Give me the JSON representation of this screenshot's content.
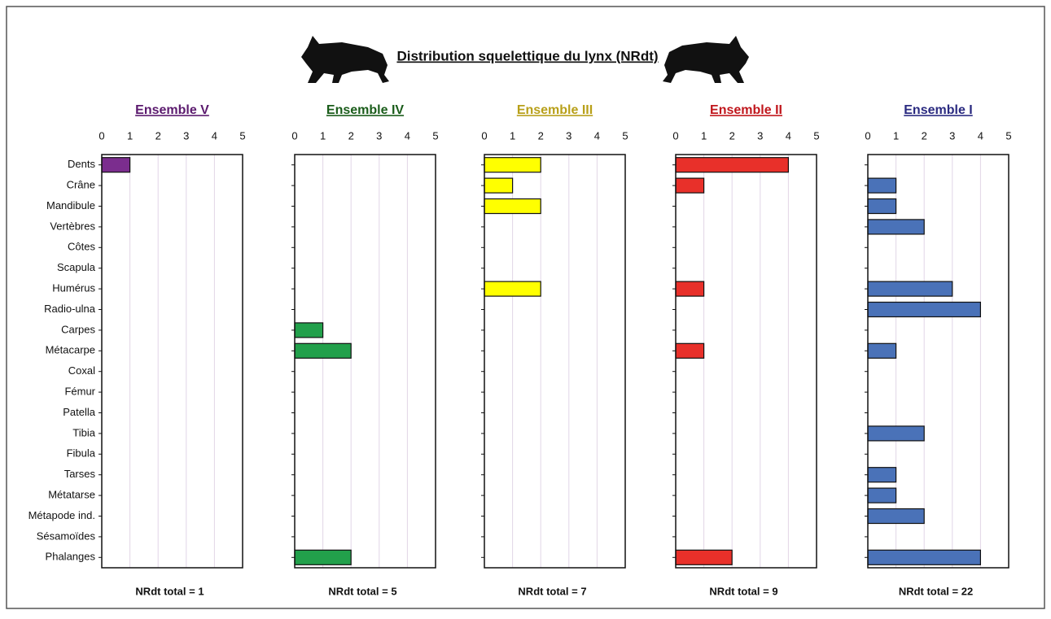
{
  "title": "Distribution squelettique du lynx (NRdt)",
  "chart_data": [
    {
      "type": "barh",
      "title": "Ensemble V",
      "title_color": "#5b1a6e",
      "color": "#7b2d8e",
      "note": "NRdt total = 1",
      "categories": [
        "Dents",
        "Crâne",
        "Mandibule",
        "Vertèbres",
        "Côtes",
        "Scapula",
        "Humérus",
        "Radio-ulna",
        "Carpes",
        "Métacarpe",
        "Coxal",
        "Fémur",
        "Patella",
        "Tibia",
        "Fibula",
        "Tarses",
        "Métatarse",
        "Métapode ind.",
        "Sésamoïdes",
        "Phalanges"
      ],
      "values": [
        1,
        0,
        0,
        0,
        0,
        0,
        0,
        0,
        0,
        0,
        0,
        0,
        0,
        0,
        0,
        0,
        0,
        0,
        0,
        0
      ],
      "xlim": [
        0,
        5
      ],
      "xticks": [
        0,
        1,
        2,
        3,
        4,
        5
      ],
      "grid": true
    },
    {
      "type": "barh",
      "title": "Ensemble IV",
      "title_color": "#1a5c1a",
      "color": "#22a04b",
      "note": "NRdt total = 5",
      "values": [
        0,
        0,
        0,
        0,
        0,
        0,
        0,
        0,
        1,
        2,
        0,
        0,
        0,
        0,
        0,
        0,
        0,
        0,
        0,
        2
      ],
      "xlim": [
        0,
        5
      ],
      "xticks": [
        0,
        1,
        2,
        3,
        4,
        5
      ],
      "grid": true
    },
    {
      "type": "barh",
      "title": "Ensemble III",
      "title_color": "#b8a01a",
      "color": "#ffff00",
      "note": "NRdt total = 7",
      "values": [
        2,
        1,
        2,
        0,
        0,
        0,
        2,
        0,
        0,
        0,
        0,
        0,
        0,
        0,
        0,
        0,
        0,
        0,
        0,
        0
      ],
      "xlim": [
        0,
        5
      ],
      "xticks": [
        0,
        1,
        2,
        3,
        4,
        5
      ],
      "grid": true
    },
    {
      "type": "barh",
      "title": "Ensemble II",
      "title_color": "#c0161c",
      "color": "#e8302a",
      "note": "NRdt total = 9",
      "values": [
        4,
        1,
        0,
        0,
        0,
        0,
        1,
        0,
        0,
        1,
        0,
        0,
        0,
        0,
        0,
        0,
        0,
        0,
        0,
        2
      ],
      "xlim": [
        0,
        5
      ],
      "xticks": [
        0,
        1,
        2,
        3,
        4,
        5
      ],
      "grid": true
    },
    {
      "type": "barh",
      "title": "Ensemble I",
      "title_color": "#2a2a80",
      "color": "#4a72b8",
      "note": "NRdt total = 22",
      "values": [
        0,
        1,
        1,
        2,
        0,
        0,
        3,
        4,
        0,
        1,
        0,
        0,
        0,
        2,
        0,
        1,
        1,
        2,
        0,
        4
      ],
      "xlim": [
        0,
        5
      ],
      "xticks": [
        0,
        1,
        2,
        3,
        4,
        5
      ],
      "grid": true
    }
  ]
}
